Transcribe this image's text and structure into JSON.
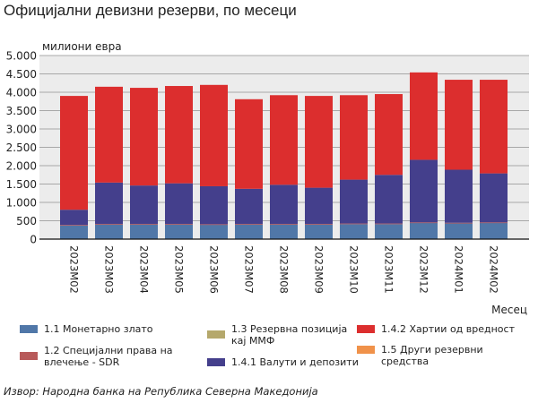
{
  "title": "Официјални девизни резерви, по месеци",
  "source": "Извор: Народна банка на Република Северна Македонија",
  "chart_data": {
    "type": "bar",
    "stacked": true,
    "title": "Официјални девизни резерви, по месеци",
    "ylabel": "милиони евра",
    "xlabel": "Месец",
    "ylim": [
      0,
      5000
    ],
    "yticks": [
      0,
      500,
      1000,
      1500,
      2000,
      2500,
      3000,
      3500,
      4000,
      4500,
      5000
    ],
    "ytick_labels": [
      "0",
      "500",
      "1.000",
      "1.500",
      "2.000",
      "2.500",
      "3.000",
      "3.500",
      "4.000",
      "4.500",
      "5.000"
    ],
    "grid": true,
    "legend_position": "bottom",
    "categories": [
      "2023M02",
      "2023M03",
      "2023M04",
      "2023M05",
      "2023M06",
      "2023M07",
      "2023M08",
      "2023M09",
      "2023M10",
      "2023M11",
      "2023M12",
      "2024M01",
      "2024M02"
    ],
    "series": [
      {
        "name": "1.1 Монетарно злато",
        "color": "#5077a8",
        "values": [
          370,
          400,
          400,
          400,
          390,
          400,
          400,
          400,
          410,
          410,
          440,
          430,
          440
        ]
      },
      {
        "name": "1.2 Специјални права на влечење - SDR",
        "color": "#b85a5a",
        "values": [
          15,
          15,
          15,
          15,
          15,
          15,
          15,
          15,
          15,
          15,
          15,
          15,
          15
        ]
      },
      {
        "name": "1.3 Резервна позиција кај ММФ",
        "color": "#b5a86c",
        "values": [
          0,
          0,
          0,
          0,
          0,
          0,
          0,
          0,
          0,
          0,
          0,
          0,
          0
        ]
      },
      {
        "name": "1.4.1 Валути и депозити",
        "color": "#443f8c",
        "values": [
          415,
          1125,
          1045,
          1105,
          1035,
          955,
          1065,
          985,
          1195,
          1325,
          1705,
          1445,
          1335
        ]
      },
      {
        "name": "1.4.2 Хартии од вредност",
        "color": "#dc2e2e",
        "values": [
          3100,
          2610,
          2660,
          2650,
          2760,
          2440,
          2440,
          2500,
          2300,
          2200,
          2380,
          2450,
          2550
        ]
      },
      {
        "name": "1.5 Други резервни средства",
        "color": "#f0924a",
        "values": [
          0,
          0,
          0,
          0,
          0,
          0,
          0,
          0,
          0,
          0,
          0,
          0,
          0
        ]
      }
    ]
  }
}
